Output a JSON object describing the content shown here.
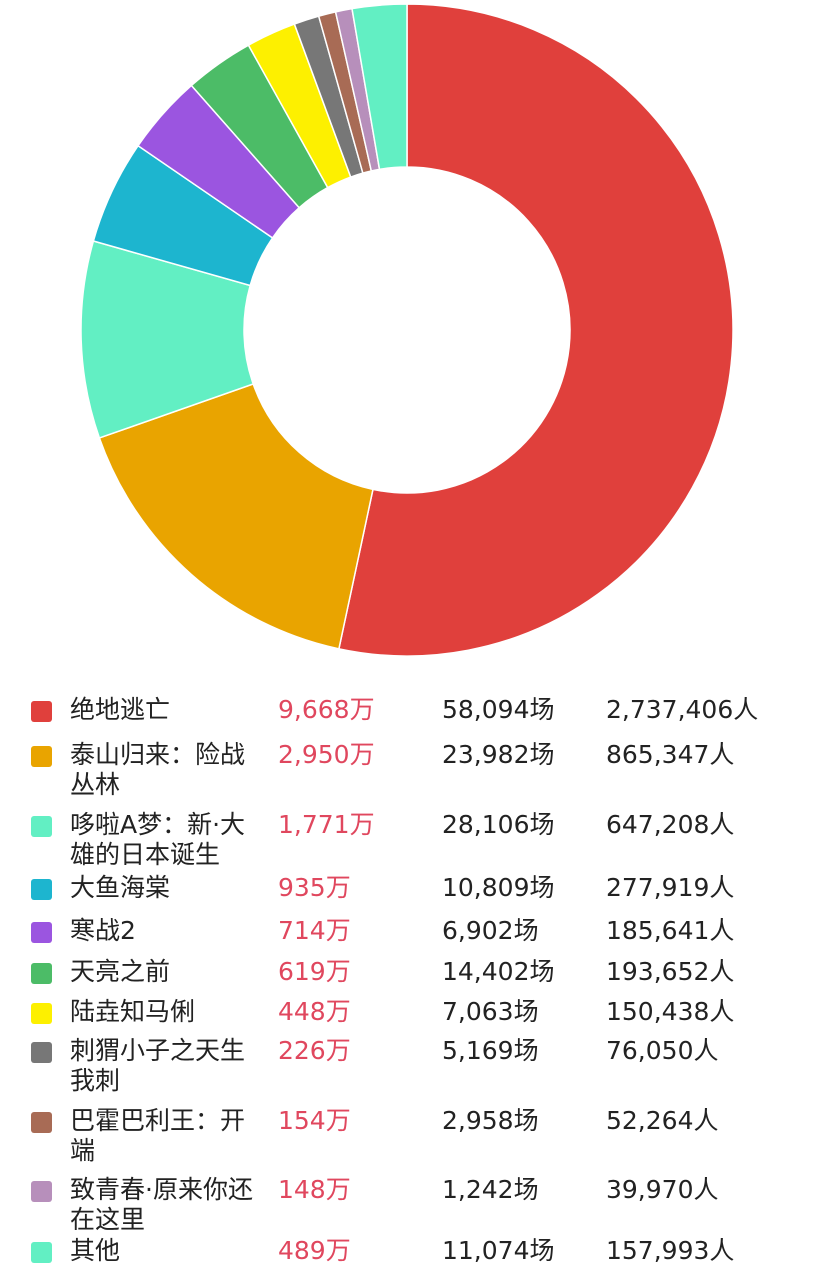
{
  "chart_data": {
    "type": "pie",
    "donut": true,
    "legend_position": "bottom",
    "series": [
      {
        "name": "绝地逃亡",
        "color": "#e0403c",
        "value": 9668,
        "revenue_label": "9,668万",
        "shows_label": "58,094场",
        "people_label": "2,737,406人"
      },
      {
        "name": "泰山归来：险战丛林",
        "color": "#e9a400",
        "value": 2950,
        "revenue_label": "2,950万",
        "shows_label": "23,982场",
        "people_label": "865,347人"
      },
      {
        "name": "哆啦A梦：新·大雄的日本诞生",
        "color": "#62efc3",
        "value": 1771,
        "revenue_label": "1,771万",
        "shows_label": "28,106场",
        "people_label": "647,208人"
      },
      {
        "name": "大鱼海棠",
        "color": "#1db5cf",
        "value": 935,
        "revenue_label": "935万",
        "shows_label": "10,809场",
        "people_label": "277,919人"
      },
      {
        "name": "寒战2",
        "color": "#9b55e0",
        "value": 714,
        "revenue_label": "714万",
        "shows_label": "6,902场",
        "people_label": "185,641人"
      },
      {
        "name": "天亮之前",
        "color": "#4cbc67",
        "value": 619,
        "revenue_label": "619万",
        "shows_label": "14,402场",
        "people_label": "193,652人"
      },
      {
        "name": "陆垚知马俐",
        "color": "#fdf000",
        "value": 448,
        "revenue_label": "448万",
        "shows_label": "7,063场",
        "people_label": "150,438人"
      },
      {
        "name": "刺猬小子之天生我刺",
        "color": "#777777",
        "value": 226,
        "revenue_label": "226万",
        "shows_label": "5,169场",
        "people_label": "76,050人"
      },
      {
        "name": "巴霍巴利王：开端",
        "color": "#a86b55",
        "value": 154,
        "revenue_label": "154万",
        "shows_label": "2,958场",
        "people_label": "52,264人"
      },
      {
        "name": "致青春·原来你还在这里",
        "color": "#b78fbb",
        "value": 148,
        "revenue_label": "148万",
        "shows_label": "1,242场",
        "people_label": "39,970人"
      },
      {
        "name": "其他",
        "color": "#62efc3",
        "value": 489,
        "revenue_label": "489万",
        "shows_label": "11,074场",
        "people_label": "157,993人"
      }
    ]
  }
}
